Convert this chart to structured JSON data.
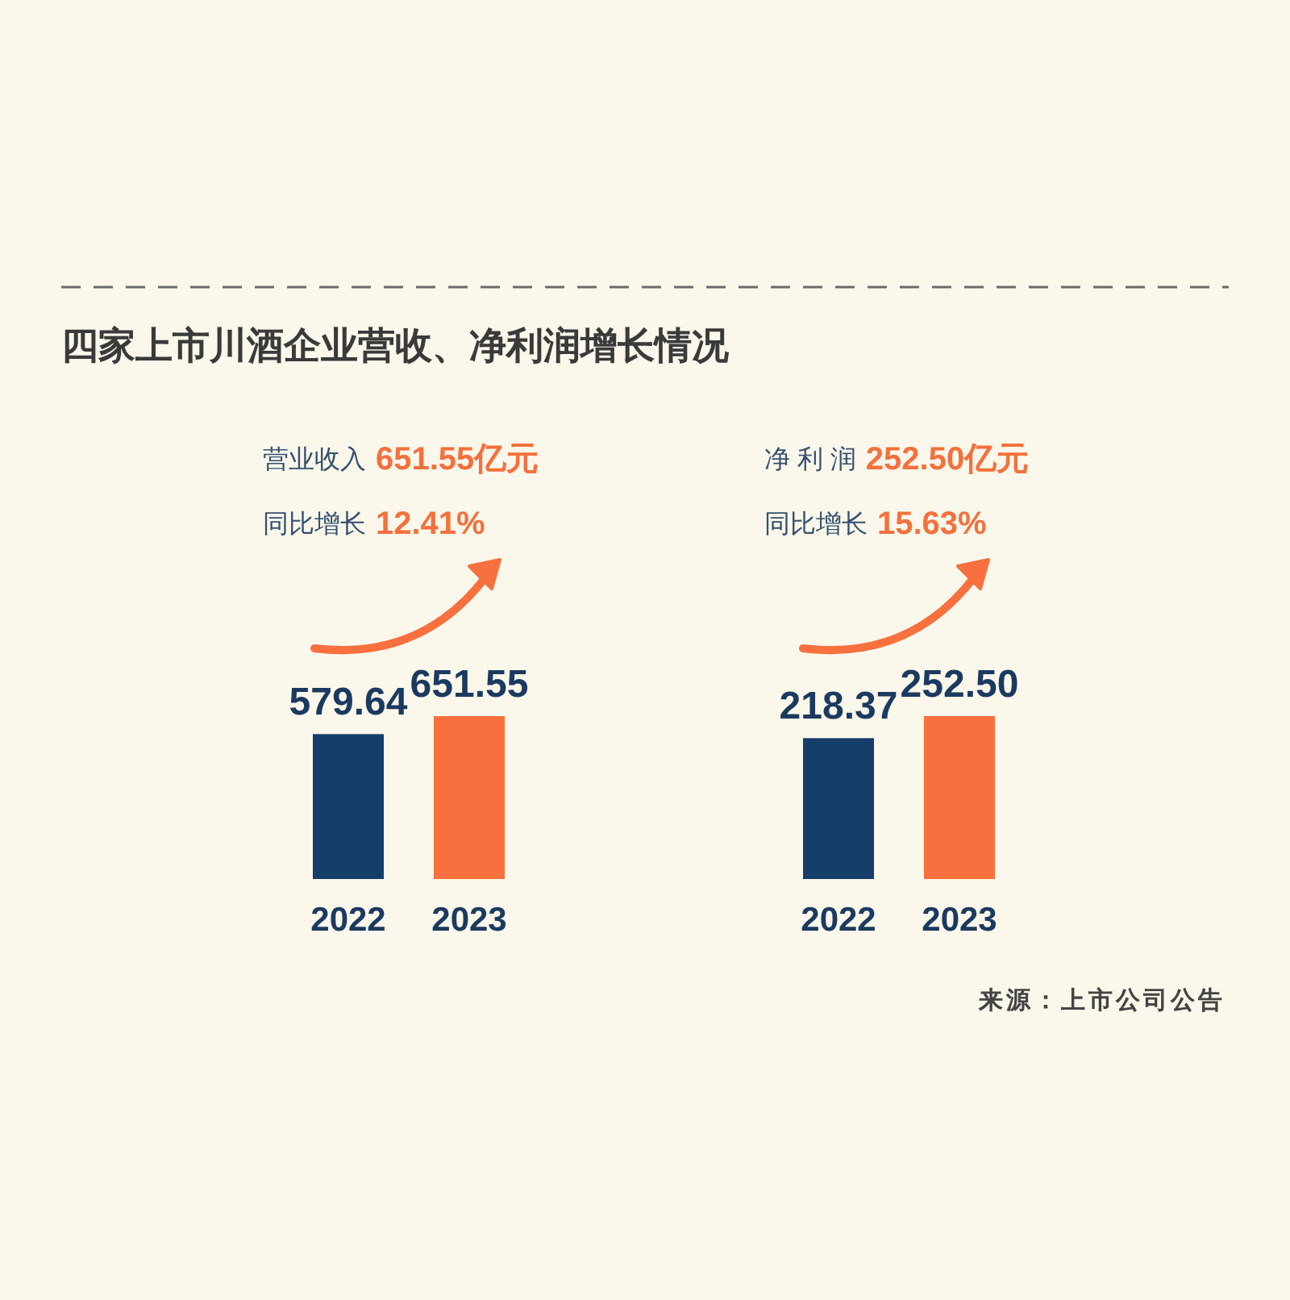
{
  "chart_data": [
    {
      "type": "bar",
      "title": "四家上市川酒企业营收、净利润增长情况",
      "categories": [
        "2022",
        "2023"
      ],
      "values": [
        579.64,
        651.55
      ],
      "colors": [
        "#153e6a",
        "#f7703d"
      ],
      "value_labels": [
        "579.64",
        "651.55"
      ],
      "annotations": [
        "营业收入",
        "651.55亿元",
        "同比增长",
        "12.41%"
      ]
    },
    {
      "type": "bar",
      "categories": [
        "2022",
        "2023"
      ],
      "values": [
        218.37,
        252.5
      ],
      "colors": [
        "#153e6a",
        "#f7703d"
      ],
      "value_labels": [
        "218.37",
        "252.50"
      ],
      "annotations": [
        "净 利 润",
        "252.50亿元",
        "同比增长",
        "15.63%",
        "来源：上市公司公告"
      ]
    }
  ]
}
